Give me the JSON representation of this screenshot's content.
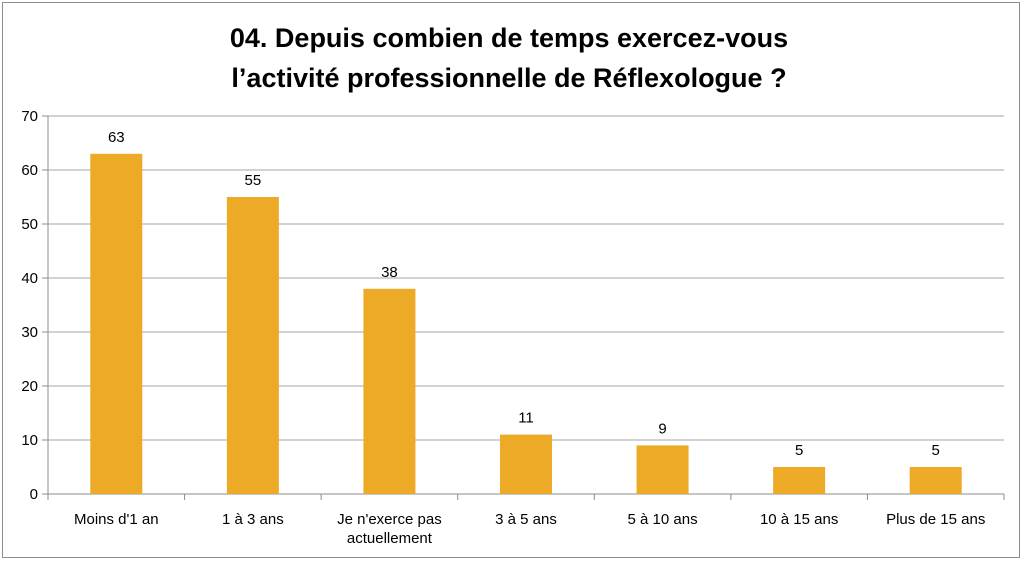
{
  "chart_data": {
    "type": "bar",
    "title_lines": [
      "04. Depuis combien de temps exercez-vous",
      "l’activité professionnelle de Réflexologue ?"
    ],
    "categories": [
      [
        "Moins d'1 an"
      ],
      [
        "1 à 3 ans"
      ],
      [
        "Je n'exerce pas",
        "actuellement"
      ],
      [
        "3 à 5 ans"
      ],
      [
        "5 à 10 ans"
      ],
      [
        "10 à 15 ans"
      ],
      [
        "Plus de 15 ans"
      ]
    ],
    "values": [
      63,
      55,
      38,
      11,
      9,
      5,
      5
    ],
    "ylim": [
      0,
      70
    ],
    "yticks": [
      0,
      10,
      20,
      30,
      40,
      50,
      60,
      70
    ],
    "grid": true,
    "legend": "none",
    "bar_color": "#EDAA26",
    "xlabel": "",
    "ylabel": ""
  }
}
